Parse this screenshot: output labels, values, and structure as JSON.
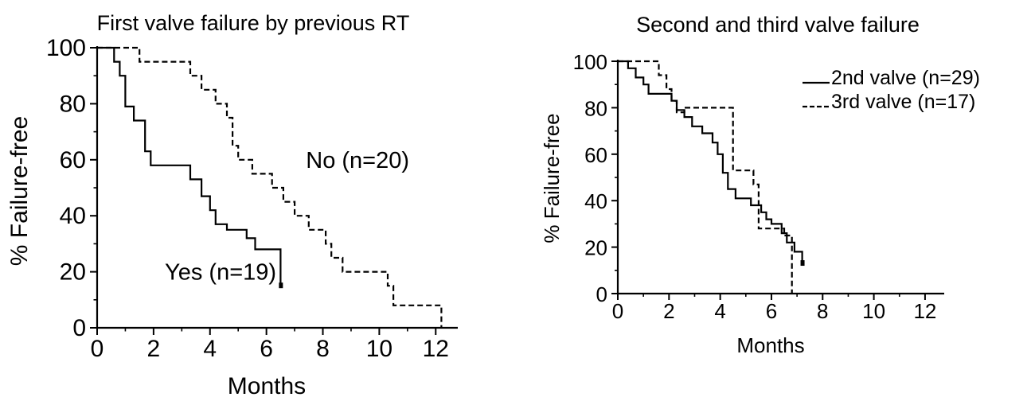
{
  "chart_data": [
    {
      "type": "line",
      "title": "First valve failure by previous RT",
      "xlabel": "Months",
      "ylabel": "% Failure-free",
      "xlim": [
        0,
        12.5
      ],
      "ylim": [
        0,
        100
      ],
      "x_ticks": [
        0,
        2,
        4,
        6,
        8,
        10,
        12
      ],
      "y_ticks": [
        0,
        20,
        40,
        60,
        80,
        100
      ],
      "grid": false,
      "step": true,
      "series": [
        {
          "name": "Yes (n=19)",
          "style": "solid",
          "color": "#000000",
          "x": [
            0,
            0.6,
            0.6,
            0.8,
            0.8,
            1.0,
            1.0,
            1.3,
            1.3,
            1.7,
            1.7,
            1.9,
            1.9,
            3.3,
            3.3,
            3.7,
            3.7,
            4.0,
            4.0,
            4.2,
            4.2,
            4.6,
            4.6,
            5.3,
            5.3,
            5.6,
            5.6,
            6.5,
            6.5
          ],
          "y": [
            100,
            100,
            95,
            95,
            90,
            90,
            79,
            79,
            74,
            74,
            63,
            63,
            58,
            58,
            53,
            53,
            47,
            47,
            42,
            42,
            37,
            37,
            35,
            35,
            32,
            32,
            28,
            28,
            15
          ]
        },
        {
          "name": "No (n=20)",
          "style": "dashed",
          "color": "#000000",
          "x": [
            0,
            1.5,
            1.5,
            3.3,
            3.3,
            3.7,
            3.7,
            4.2,
            4.2,
            4.6,
            4.6,
            4.8,
            4.8,
            5.0,
            5.0,
            5.5,
            5.5,
            6.2,
            6.2,
            6.6,
            6.6,
            7.0,
            7.0,
            7.5,
            7.5,
            8.1,
            8.1,
            8.3,
            8.3,
            8.7,
            8.7,
            10.3,
            10.3,
            10.5,
            10.5,
            12.2,
            12.2
          ],
          "y": [
            100,
            100,
            95,
            95,
            90,
            90,
            85,
            85,
            80,
            80,
            75,
            75,
            65,
            65,
            60,
            60,
            55,
            55,
            50,
            50,
            45,
            45,
            40,
            40,
            35,
            35,
            30,
            30,
            25,
            25,
            20,
            20,
            15,
            15,
            8,
            8,
            0
          ]
        }
      ],
      "annotations": [
        {
          "text": "No (n=20)",
          "x": 7.4,
          "y": 60
        },
        {
          "text": "Yes (n=19)",
          "x": 2.4,
          "y": 20
        }
      ]
    },
    {
      "type": "line",
      "title": "Second and third valve failure",
      "xlabel": "Months",
      "ylabel": "% Failure-free",
      "xlim": [
        0,
        12.5
      ],
      "ylim": [
        0,
        100
      ],
      "x_ticks": [
        0,
        2,
        4,
        6,
        8,
        10,
        12
      ],
      "y_ticks": [
        0,
        20,
        40,
        60,
        80,
        100
      ],
      "grid": false,
      "step": true,
      "legend": "top-right",
      "series": [
        {
          "name": "2nd valve (n=29)",
          "style": "solid",
          "color": "#000000",
          "x": [
            0,
            0.4,
            0.4,
            0.7,
            0.7,
            1.0,
            1.0,
            1.2,
            1.2,
            2.1,
            2.1,
            2.3,
            2.3,
            2.6,
            2.6,
            2.9,
            2.9,
            3.3,
            3.3,
            3.7,
            3.7,
            3.9,
            3.9,
            4.1,
            4.1,
            4.3,
            4.3,
            4.6,
            4.6,
            5.2,
            5.2,
            5.6,
            5.6,
            5.8,
            5.8,
            6.0,
            6.0,
            6.4,
            6.4,
            6.6,
            6.6,
            6.9,
            6.9,
            7.2,
            7.2
          ],
          "y": [
            100,
            100,
            97,
            97,
            93,
            93,
            90,
            90,
            86,
            86,
            83,
            83,
            79,
            79,
            76,
            76,
            72,
            72,
            69,
            69,
            65,
            65,
            60,
            60,
            52,
            52,
            45,
            45,
            41,
            41,
            38,
            38,
            35,
            35,
            32,
            32,
            30,
            30,
            26,
            26,
            22,
            22,
            18,
            18,
            13
          ]
        },
        {
          "name": "3rd valve (n=17)",
          "style": "dashed",
          "color": "#000000",
          "x": [
            0,
            1.6,
            1.6,
            1.9,
            1.9,
            2.1,
            2.1,
            2.3,
            2.3,
            2.6,
            2.6,
            4.5,
            4.5,
            5.3,
            5.3,
            5.5,
            5.5,
            6.5,
            6.5,
            6.8,
            6.8
          ],
          "y": [
            100,
            100,
            94,
            94,
            88,
            88,
            83,
            83,
            78,
            78,
            80,
            80,
            53,
            53,
            47,
            47,
            28,
            28,
            25,
            25,
            0
          ]
        }
      ]
    }
  ]
}
